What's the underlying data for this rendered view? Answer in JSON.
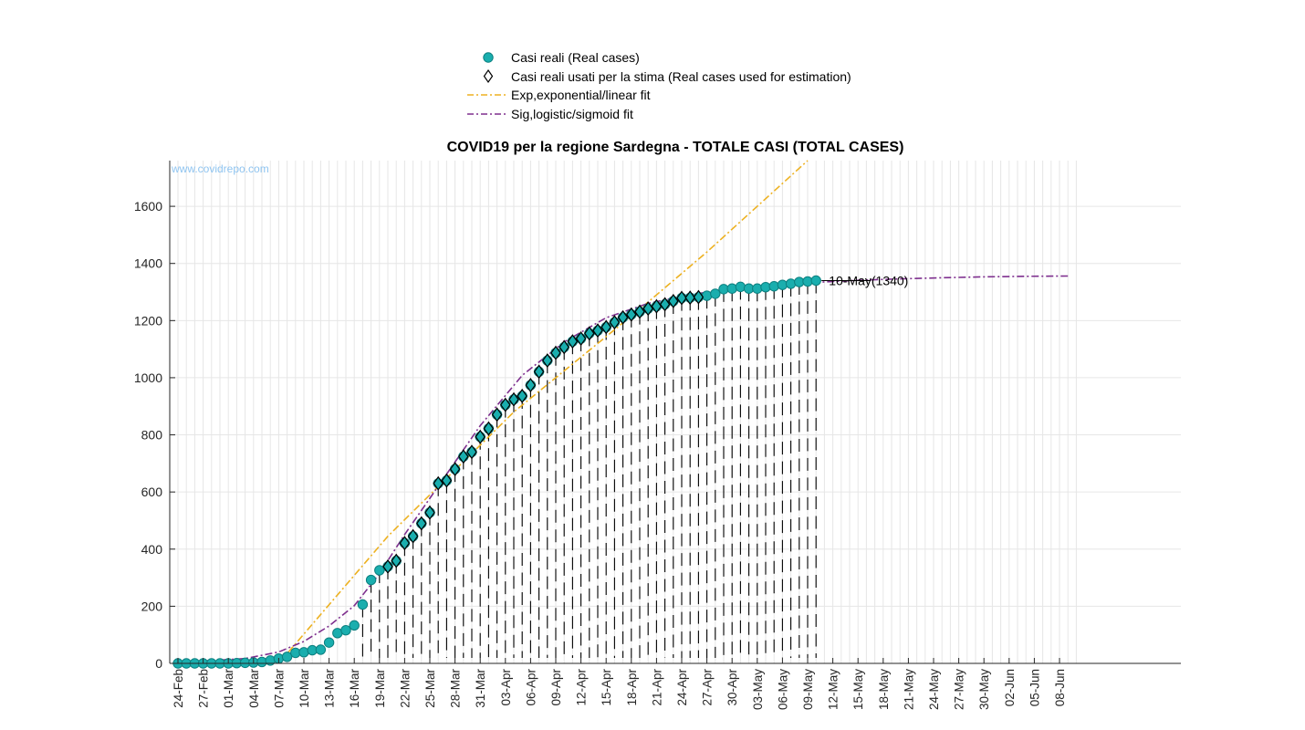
{
  "chart_data": {
    "type": "line",
    "title": "COVID19 per la regione Sardegna - TOTALE CASI (TOTAL CASES)",
    "watermark": "www.covidrepo.com",
    "xlabel": "",
    "ylabel": "",
    "ylim": [
      0,
      1760
    ],
    "yticks": [
      0,
      200,
      400,
      600,
      800,
      1000,
      1200,
      1400,
      1600
    ],
    "x_start_date": "24-Feb",
    "x_range_days": [
      0,
      107
    ],
    "xtick_labels": [
      "24-Feb",
      "27-Feb",
      "01-Mar",
      "04-Mar",
      "07-Mar",
      "10-Mar",
      "13-Mar",
      "16-Mar",
      "19-Mar",
      "22-Mar",
      "25-Mar",
      "28-Mar",
      "31-Mar",
      "03-Apr",
      "06-Apr",
      "09-Apr",
      "12-Apr",
      "15-Apr",
      "18-Apr",
      "21-Apr",
      "24-Apr",
      "27-Apr",
      "30-Apr",
      "03-May",
      "06-May",
      "09-May",
      "12-May",
      "15-May",
      "18-May",
      "21-May",
      "24-May",
      "27-May",
      "30-May",
      "02-Jun",
      "05-Jun",
      "08-Jun"
    ],
    "grid": true,
    "legend_position": "top-center",
    "legend": [
      {
        "label": "Casi reali (Real cases)",
        "marker": "circle"
      },
      {
        "label": "Casi reali usati per la stima (Real cases used for estimation)",
        "marker": "diamond"
      },
      {
        "label": "Exp,exponential/linear fit",
        "style": "dash-dot",
        "color": "#EDB120"
      },
      {
        "label": "Sig,logistic/sigmoid fit",
        "style": "dash-dot",
        "color": "#7E2F8E"
      }
    ],
    "annotation": {
      "text": "10-May(1340)",
      "x": 76,
      "y": 1340
    },
    "series": [
      {
        "name": "Casi reali (Real cases)",
        "color": "#1AAEAE",
        "values": [
          0,
          0,
          0,
          0,
          0,
          0,
          0,
          1,
          2,
          3,
          5,
          10,
          17,
          23,
          37,
          39,
          46,
          48,
          73,
          106,
          116,
          133,
          206,
          292,
          326,
          339,
          359,
          421,
          445,
          490,
          528,
          630,
          640,
          680,
          724,
          740,
          793,
          822,
          871,
          905,
          924,
          936,
          974,
          1021,
          1060,
          1087,
          1107,
          1127,
          1137,
          1155,
          1165,
          1177,
          1194,
          1211,
          1221,
          1231,
          1242,
          1250,
          1257,
          1268,
          1279,
          1280,
          1282,
          1287,
          1294,
          1310,
          1312,
          1318,
          1312,
          1312,
          1317,
          1320,
          1325,
          1329,
          1335,
          1337,
          1340
        ]
      },
      {
        "name": "Casi reali usati per la stima (Real cases used for estimation)",
        "start_index": 25,
        "end_index": 62
      }
    ],
    "fits": [
      {
        "name": "Exp,exponential/linear fit",
        "x": [
          12,
          25,
          40,
          55,
          63,
          75
        ],
        "y": [
          0,
          445,
          880,
          1240,
          1440,
          1770
        ]
      },
      {
        "name": "Sig,logistic/sigmoid fit",
        "x": [
          0,
          4,
          8,
          12,
          15,
          18,
          21,
          24,
          27,
          31,
          36,
          41,
          46,
          51,
          56,
          61,
          66,
          71,
          76,
          81,
          86,
          91,
          96,
          101,
          106
        ],
        "y": [
          5,
          10,
          17,
          40,
          77,
          131,
          202,
          314,
          451,
          620,
          832,
          1008,
          1125,
          1210,
          1260,
          1291,
          1311,
          1325,
          1334,
          1341,
          1346,
          1350,
          1353,
          1355,
          1356
        ]
      }
    ]
  }
}
